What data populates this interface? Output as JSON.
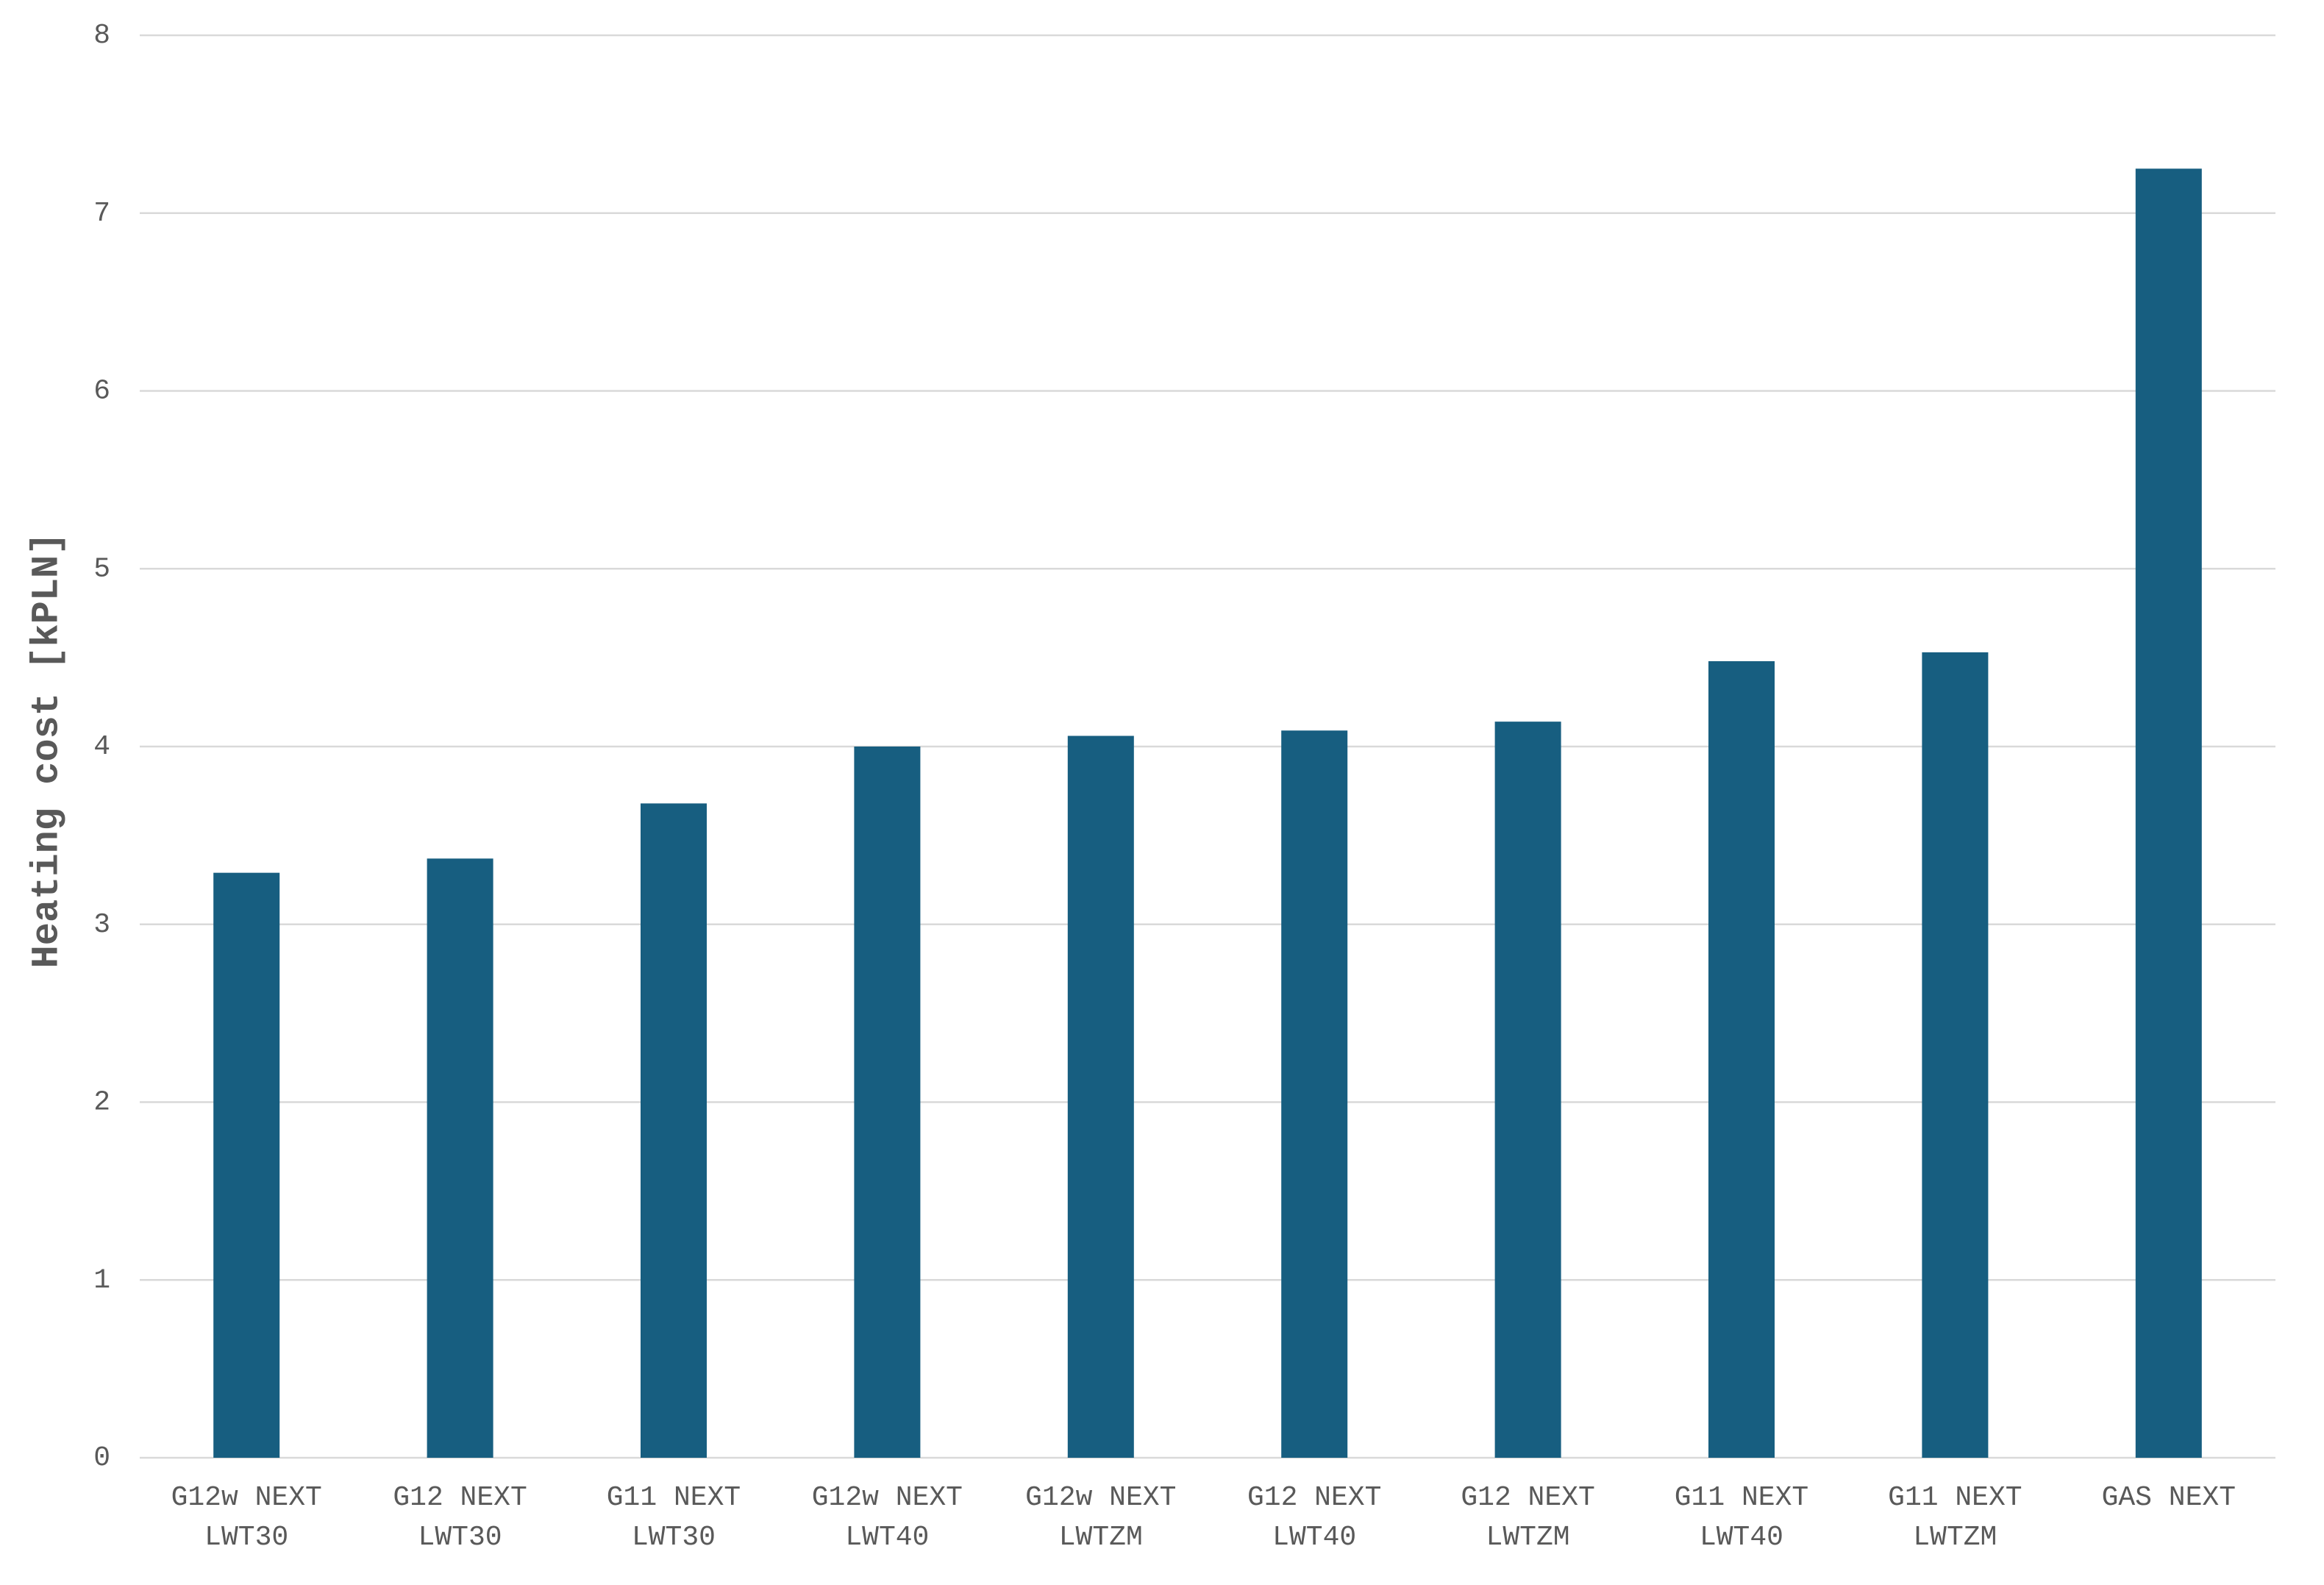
{
  "chart_data": {
    "type": "bar",
    "y_label": "Heating cost [kPLN]",
    "categories": [
      "G12w NEXT\nLWT30",
      "G12 NEXT\nLWT30",
      "G11 NEXT\nLWT30",
      "G12w NEXT\nLWT40",
      "G12w NEXT\nLWTZM",
      "G12 NEXT\nLWT40",
      "G12 NEXT\nLWTZM",
      "G11 NEXT\nLWT40",
      "G11 NEXT\nLWTZM",
      "GAS NEXT"
    ],
    "values": [
      3.29,
      3.37,
      3.68,
      4.0,
      4.06,
      4.09,
      4.14,
      4.48,
      4.53,
      7.25
    ],
    "color": "#175e80",
    "ylim": [
      0,
      8
    ],
    "yticks": [
      0,
      1,
      2,
      3,
      4,
      5,
      6,
      7,
      8
    ],
    "grid": true
  }
}
